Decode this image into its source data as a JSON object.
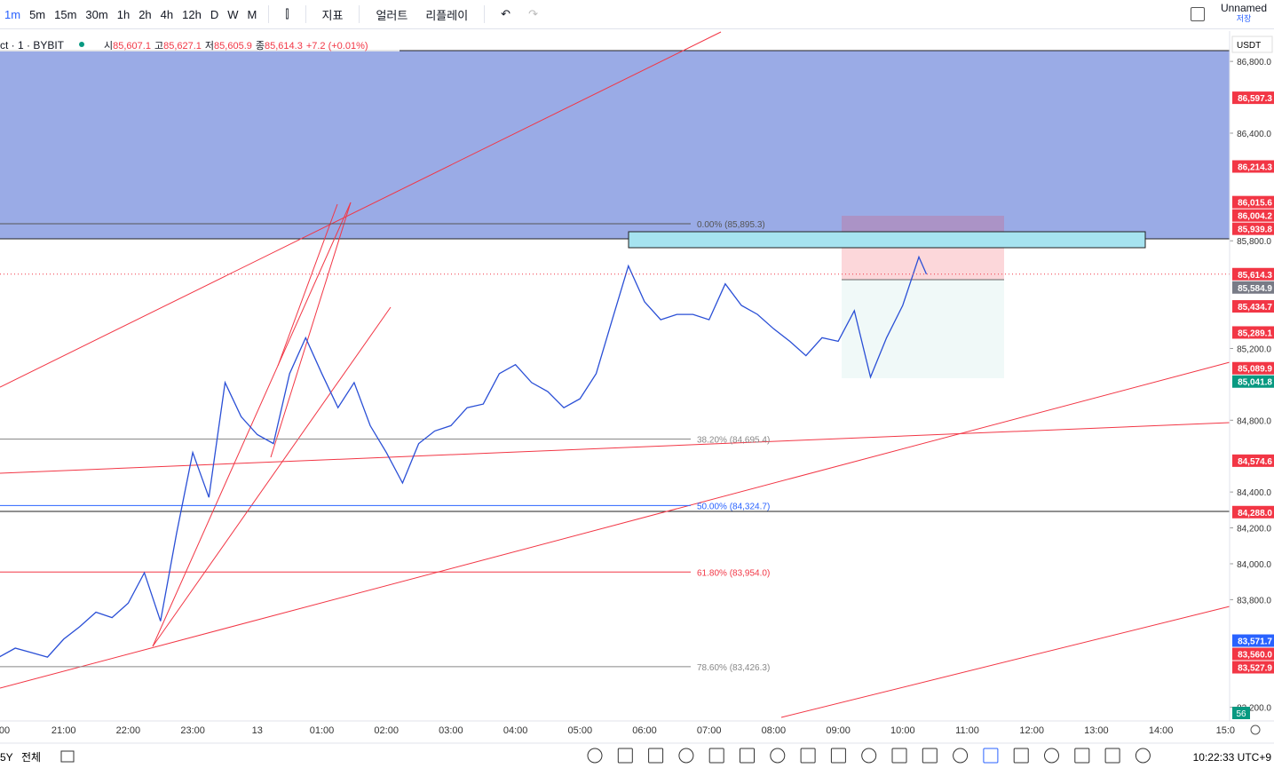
{
  "toolbar": {
    "intervals": [
      "1m",
      "5m",
      "15m",
      "30m",
      "1h",
      "2h",
      "4h",
      "12h",
      "D",
      "W",
      "M"
    ],
    "indicators": "지표",
    "alert": "얼러트",
    "replay": "리플레이",
    "layout_name": "Unnamed",
    "save": "저장"
  },
  "legend": {
    "symbol": "ct · 1 · BYBIT",
    "open_label": "시",
    "open": "85,607.1",
    "high_label": "고",
    "high": "85,627.1",
    "low_label": "저",
    "low": "85,605.9",
    "close_label": "종",
    "close": "85,614.3",
    "change": "+7.2 (+0.01%)"
  },
  "currency": "USDT",
  "price_axis": {
    "ylim": [
      83124,
      86969
    ],
    "ticks": [
      {
        "value": 86800,
        "label": "86,800.0"
      },
      {
        "value": 86400,
        "label": "86,400.0"
      },
      {
        "value": 85800,
        "label": "85,800.0"
      },
      {
        "value": 85200,
        "label": "85,200.0"
      },
      {
        "value": 84800,
        "label": "84,800.0"
      },
      {
        "value": 84400,
        "label": "84,400.0"
      },
      {
        "value": 84200,
        "label": "84,200.0"
      },
      {
        "value": 84000,
        "label": "84,000.0"
      },
      {
        "value": 83800,
        "label": "83,800.0"
      },
      {
        "value": 83200,
        "label": "83,200.0"
      }
    ]
  },
  "price_labels": [
    {
      "value": 86597.3,
      "label": "86,597.3",
      "color": "#f23645"
    },
    {
      "value": 86214.3,
      "label": "86,214.3",
      "color": "#f23645"
    },
    {
      "value": 86015.6,
      "label": "86,015.6",
      "color": "#f23645"
    },
    {
      "value": 86004.2,
      "label": "86,004.2",
      "color": "#f23645"
    },
    {
      "value": 85939.8,
      "label": "85,939.8",
      "color": "#f23645"
    },
    {
      "value": 85614.3,
      "label": "85,614.3",
      "color": "#f23645"
    },
    {
      "value": 85584.9,
      "label": "85,584.9",
      "color": "#787b86"
    },
    {
      "value": 85434.7,
      "label": "85,434.7",
      "color": "#f23645"
    },
    {
      "value": 85289.1,
      "label": "85,289.1",
      "color": "#f23645"
    },
    {
      "value": 85089.9,
      "label": "85,089.9",
      "color": "#f23645"
    },
    {
      "value": 85041.8,
      "label": "85,041.8",
      "color": "#089981"
    },
    {
      "value": 84574.6,
      "label": "84,574.6",
      "color": "#f23645"
    },
    {
      "value": 84288.0,
      "label": "84,288.0",
      "color": "#f23645"
    },
    {
      "value": 83571.7,
      "label": "83,571.7",
      "color": "#2962ff"
    },
    {
      "value": 83560.0,
      "label": "83,560.0",
      "color": "#f23645"
    },
    {
      "value": 83527.9,
      "label": "83,527.9",
      "color": "#f23645"
    }
  ],
  "volume_label": "56",
  "fib_levels": [
    {
      "label": "0.00% (85,895.3)",
      "price": 85895.3,
      "color": "#555555"
    },
    {
      "label": "38.20% (84,695.4)",
      "price": 84695.4,
      "color": "#888888"
    },
    {
      "label": "50.00% (84,324.7)",
      "price": 84324.7,
      "color": "#2962ff"
    },
    {
      "label": "61.80% (83,954.0)",
      "price": 83954.0,
      "color": "#f23645"
    },
    {
      "label": "78.60% (83,426.3)",
      "price": 83426.3,
      "color": "#888888"
    }
  ],
  "price_series": {
    "color": "#2a4fd6",
    "x": [
      "20:00",
      "20:15",
      "20:30",
      "20:45",
      "21:00",
      "21:15",
      "21:30",
      "21:45",
      "22:00",
      "22:15",
      "22:30",
      "22:45",
      "23:00",
      "23:15",
      "23:30",
      "23:45",
      "00:00",
      "00:15",
      "00:30",
      "00:45",
      "01:00",
      "01:15",
      "01:30",
      "01:45",
      "02:00",
      "02:15",
      "02:30",
      "02:45",
      "03:00",
      "03:15",
      "03:30",
      "03:45",
      "04:00",
      "04:15",
      "04:30",
      "04:45",
      "05:00",
      "05:15",
      "05:30",
      "05:45",
      "06:00",
      "06:15",
      "06:30",
      "06:45",
      "07:00",
      "07:15",
      "07:30",
      "07:45",
      "08:00",
      "08:15",
      "08:30",
      "08:45",
      "09:00",
      "09:15",
      "09:30",
      "09:45",
      "10:00",
      "10:15",
      "10:22"
    ],
    "values": [
      83480,
      83530,
      83505,
      83480,
      83580,
      83650,
      83730,
      83700,
      83780,
      83950,
      83680,
      84170,
      84620,
      84370,
      85010,
      84820,
      84720,
      84670,
      85060,
      85260,
      85060,
      84870,
      85010,
      84770,
      84620,
      84450,
      84670,
      84740,
      84770,
      84870,
      84890,
      85060,
      85110,
      85010,
      84960,
      84870,
      84920,
      85060,
      85360,
      85660,
      85460,
      85360,
      85390,
      85390,
      85360,
      85560,
      85440,
      85390,
      85310,
      85240,
      85160,
      85260,
      85240,
      85410,
      85040,
      85260,
      85440,
      85710,
      85614.3
    ]
  },
  "time_axis": [
    "00",
    "21:00",
    "22:00",
    "23:00",
    "13",
    "01:00",
    "02:00",
    "03:00",
    "04:00",
    "05:00",
    "06:00",
    "07:00",
    "08:00",
    "09:00",
    "10:00",
    "11:00",
    "12:00",
    "13:00",
    "14:00",
    "15:0"
  ],
  "bottom_bar": {
    "ranges": [
      "5Y",
      "전체"
    ],
    "clock": "10:22:33 UTC+9"
  }
}
